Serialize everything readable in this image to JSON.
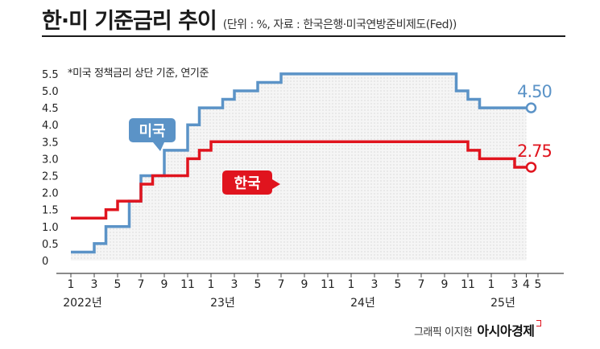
{
  "header": {
    "title": "한·미 기준금리 추이",
    "subtitle": "(단위 : %, 자료 : 한국은행·미국연방준비제도(Fed))"
  },
  "credit": {
    "author": "그래픽 이지현",
    "brand": "아시아경제"
  },
  "chart_data": {
    "type": "line",
    "step": true,
    "note": "*미국 정책금리 상단 기준, 연기준",
    "x_ticks": [
      "1",
      "3",
      "5",
      "7",
      "9",
      "11",
      "1",
      "3",
      "5",
      "7",
      "9",
      "11",
      "1",
      "3",
      "5",
      "7",
      "9",
      "11",
      "1",
      "3",
      "4",
      "5"
    ],
    "x_groups": [
      "2022년",
      "23년",
      "24년",
      "25년"
    ],
    "y_ticks": [
      "0",
      "0.5",
      "1.0",
      "1.5",
      "2.0",
      "2.5",
      "3.0",
      "3.5",
      "4.0",
      "4.5",
      "5.0",
      "5.5"
    ],
    "ylim": [
      0,
      5.5
    ],
    "grid": false,
    "series": [
      {
        "name": "미국",
        "color": "#5b93c7",
        "end_label": "4.50",
        "points": [
          [
            0,
            0.25
          ],
          [
            2,
            0.5
          ],
          [
            3,
            1.0
          ],
          [
            5,
            1.75
          ],
          [
            6,
            2.5
          ],
          [
            7,
            2.5
          ],
          [
            8,
            3.25
          ],
          [
            10,
            4.0
          ],
          [
            11,
            4.5
          ],
          [
            13,
            4.75
          ],
          [
            14,
            5.0
          ],
          [
            16,
            5.25
          ],
          [
            18,
            5.5
          ],
          [
            32,
            5.5
          ],
          [
            33,
            5.0
          ],
          [
            34,
            4.75
          ],
          [
            35,
            4.5
          ],
          [
            39,
            4.5
          ]
        ]
      },
      {
        "name": "한국",
        "color": "#e0141e",
        "end_label": "2.75",
        "points": [
          [
            0,
            1.25
          ],
          [
            3,
            1.5
          ],
          [
            4,
            1.75
          ],
          [
            6,
            2.25
          ],
          [
            7,
            2.5
          ],
          [
            9,
            2.5
          ],
          [
            10,
            3.0
          ],
          [
            11,
            3.25
          ],
          [
            12,
            3.5
          ],
          [
            32,
            3.5
          ],
          [
            34,
            3.25
          ],
          [
            35,
            3.0
          ],
          [
            38,
            2.75
          ],
          [
            39,
            2.75
          ]
        ]
      }
    ]
  }
}
